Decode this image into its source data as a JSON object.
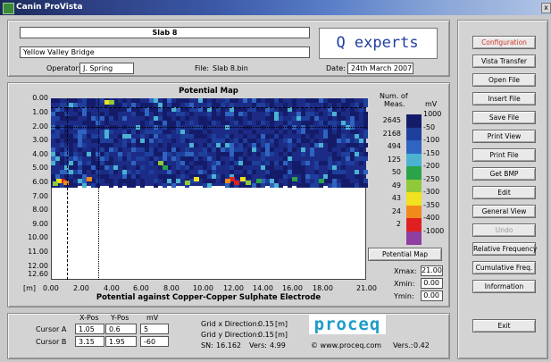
{
  "window": {
    "title": "Canin ProVista",
    "close_label": "x"
  },
  "header": {
    "slab_title": "Slab 8",
    "project_name": "Yellow Valley Bridge",
    "logo_text": "Q experts",
    "operator_label": "Operator:",
    "operator_value": "J. Spring",
    "file_label": "File:",
    "file_value": "Slab 8.bin",
    "date_label": "Date:",
    "date_value": "24th March 2007"
  },
  "side_buttons": [
    "Configuration",
    "Vista Transfer",
    "Open File",
    "Insert File",
    "Save File",
    "Print View",
    "Print File",
    "Get BMP",
    "Edit",
    "General View",
    "Undo",
    "Relative Frequency",
    "Cumulative Freq.",
    "Information"
  ],
  "exit_label": "Exit",
  "map": {
    "title": "Potential Map",
    "xlabel": "Potential against Copper-Copper Sulphate Electrode",
    "x_unit": "[m]",
    "xticks": [
      "0.00",
      "2.00",
      "4.00",
      "6.00",
      "8.00",
      "10.00",
      "12.00",
      "14.00",
      "16.00",
      "18.00",
      "21.00"
    ],
    "yticks": [
      "0.00",
      "1.00",
      "2.00",
      "3.00",
      "4.00",
      "5.00",
      "6.00",
      "7.00",
      "8.00",
      "9.00",
      "10.00",
      "11.00",
      "12.00",
      "12.60"
    ],
    "legend_head1": "Num. of",
    "legend_head2": "Meas.",
    "legend_unit": "mV",
    "legend_counts": [
      "2645",
      "2168",
      "494",
      "125",
      "50",
      "49",
      "43",
      "24",
      "2"
    ],
    "legend_mv": [
      "1000",
      "-50",
      "-100",
      "-150",
      "-200",
      "-250",
      "-300",
      "-350",
      "-400",
      "-1000"
    ],
    "legend_colors": [
      "#141c6a",
      "#1e3f9c",
      "#2f64c0",
      "#4bb2d2",
      "#2aa34a",
      "#8fc93a",
      "#f0e21e",
      "#f08a1a",
      "#e02020",
      "#8e3fa0"
    ],
    "button_label": "Potential Map",
    "xmax_label": "Xmax:",
    "xmax_value": "21.00",
    "xmin_label": "Xmin:",
    "xmin_value": "0.00",
    "ymin_label": "Ymin:",
    "ymin_value": "0.00"
  },
  "cursor": {
    "col_xpos": "X-Pos",
    "col_ypos": "Y-Pos",
    "col_mv": "mV",
    "a_label": "Cursor A",
    "a_x": "1.05",
    "a_y": "0.6",
    "a_mv": "5",
    "b_label": "Cursor B",
    "b_x": "3.15",
    "b_y": "1.95",
    "b_mv": "-60"
  },
  "grid": {
    "x_dir_label": "Grid x Direction:",
    "x_dir_value": "0.15",
    "y_dir_label": "Grid y Direction:",
    "y_dir_value": "0.15",
    "unit": "[m]",
    "sn_label": "SN:",
    "sn_value": "16.162",
    "vers_label": "Vers:",
    "vers_value": "4.99"
  },
  "brand": {
    "logo": "proceq",
    "website": "© www.proceq.com",
    "vers_label": "Vers.:",
    "vers_value": "0.42"
  }
}
